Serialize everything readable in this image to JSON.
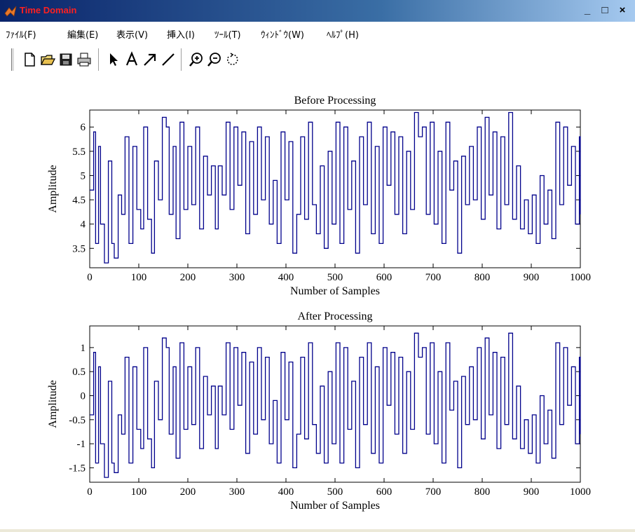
{
  "window": {
    "title": "Time Domain",
    "controls": {
      "minimize": "_",
      "maximize": "□",
      "close": "×"
    }
  },
  "menu": {
    "items": [
      "ﾌｧｲﾙ(F)",
      "編集(E)",
      "表示(V)",
      "挿入(I)",
      "ﾂｰﾙ(T)",
      "ｳｨﾝﾄﾞｳ(W)",
      "ﾍﾙﾌﾟ(H)"
    ]
  },
  "toolbar": {
    "buttons": [
      "new-file-icon",
      "open-file-icon",
      "save-icon",
      "print-icon",
      "select-arrow-icon",
      "insert-text-icon",
      "insert-arrow-icon",
      "insert-line-icon",
      "zoom-in-icon",
      "zoom-out-icon",
      "rotate-icon"
    ]
  },
  "colors": {
    "line": "#00008b",
    "title_text": "#ff2020"
  },
  "chart_data": [
    {
      "type": "line",
      "title": "Before Processing",
      "xlabel": "Number of Samples",
      "ylabel": "Amplitude",
      "xlim": [
        0,
        1000
      ],
      "ylim": [
        3.1,
        6.35
      ],
      "xticks": [
        0,
        100,
        200,
        300,
        400,
        500,
        600,
        700,
        800,
        900,
        1000
      ],
      "yticks": [
        3.5,
        4,
        4.5,
        5,
        5.5,
        6
      ],
      "ytick_labels": [
        "3.5",
        "4",
        "4.5",
        "5",
        "5.5",
        "6"
      ],
      "grid": false,
      "series": [
        {
          "x": [
            0,
            8,
            12,
            18,
            22,
            30,
            38,
            45,
            50,
            58,
            65,
            72,
            80,
            88,
            96,
            104,
            110,
            118,
            126,
            132,
            140,
            148,
            156,
            162,
            170,
            176,
            184,
            192,
            200,
            208,
            216,
            224,
            232,
            240,
            248,
            256,
            262,
            270,
            278,
            286,
            294,
            302,
            310,
            318,
            326,
            334,
            342,
            350,
            358,
            366,
            374,
            382,
            390,
            398,
            406,
            414,
            422,
            430,
            438,
            446,
            454,
            462,
            470,
            478,
            486,
            494,
            502,
            510,
            518,
            526,
            534,
            542,
            550,
            558,
            566,
            574,
            582,
            590,
            598,
            606,
            614,
            622,
            630,
            638,
            646,
            654,
            662,
            670,
            678,
            686,
            694,
            702,
            710,
            718,
            726,
            734,
            742,
            750,
            758,
            766,
            774,
            782,
            790,
            798,
            806,
            814,
            822,
            830,
            838,
            846,
            854,
            862,
            870,
            878,
            886,
            894,
            902,
            910,
            918,
            926,
            934,
            942,
            950,
            958,
            966,
            974,
            982,
            990,
            998,
            1000
          ],
          "y": [
            4.7,
            5.9,
            3.6,
            5.6,
            4.0,
            3.2,
            5.3,
            3.6,
            3.3,
            4.6,
            4.2,
            5.8,
            3.6,
            5.6,
            4.3,
            3.9,
            6.0,
            4.1,
            3.4,
            5.3,
            4.5,
            6.2,
            6.0,
            4.2,
            5.6,
            3.7,
            6.1,
            4.3,
            5.6,
            4.4,
            6.0,
            3.9,
            5.4,
            4.6,
            5.2,
            3.9,
            5.2,
            4.6,
            6.1,
            4.3,
            6.0,
            4.8,
            5.9,
            3.8,
            5.7,
            4.2,
            6.0,
            4.5,
            5.8,
            4.0,
            4.9,
            3.6,
            5.9,
            4.5,
            5.7,
            3.4,
            4.2,
            5.8,
            4.1,
            6.1,
            4.4,
            3.8,
            5.2,
            3.5,
            5.5,
            4.0,
            6.1,
            3.6,
            6.0,
            4.3,
            5.3,
            3.4,
            5.8,
            4.4,
            6.1,
            3.8,
            5.6,
            3.6,
            6.0,
            4.8,
            5.9,
            4.2,
            5.8,
            3.8,
            5.5,
            4.3,
            6.3,
            5.8,
            6.0,
            4.2,
            6.1,
            4.0,
            5.5,
            3.6,
            6.1,
            4.7,
            5.3,
            3.4,
            5.4,
            4.4,
            5.6,
            4.5,
            6.0,
            4.1,
            6.2,
            4.6,
            5.9,
            3.9,
            5.8,
            4.4,
            6.3,
            4.1,
            5.2,
            3.9,
            4.5,
            3.8,
            4.6,
            3.6,
            5.0,
            4.0,
            4.7,
            3.7,
            6.1,
            4.4,
            6.0,
            4.8,
            5.6,
            4.0,
            5.8,
            4.2
          ]
        }
      ]
    },
    {
      "type": "line",
      "title": "After Processing",
      "xlabel": "Number of Samples",
      "ylabel": "Amplitude",
      "xlim": [
        0,
        1000
      ],
      "ylim": [
        -1.8,
        1.45
      ],
      "xticks": [
        0,
        100,
        200,
        300,
        400,
        500,
        600,
        700,
        800,
        900,
        1000
      ],
      "yticks": [
        -1.5,
        -1,
        -0.5,
        0,
        0.5,
        1
      ],
      "ytick_labels": [
        "-1.5",
        "-1",
        "-0.5",
        "0",
        "0.5",
        "1"
      ],
      "grid": false,
      "series": [
        {
          "x": [
            0,
            8,
            12,
            18,
            22,
            30,
            38,
            45,
            50,
            58,
            65,
            72,
            80,
            88,
            96,
            104,
            110,
            118,
            126,
            132,
            140,
            148,
            156,
            162,
            170,
            176,
            184,
            192,
            200,
            208,
            216,
            224,
            232,
            240,
            248,
            256,
            262,
            270,
            278,
            286,
            294,
            302,
            310,
            318,
            326,
            334,
            342,
            350,
            358,
            366,
            374,
            382,
            390,
            398,
            406,
            414,
            422,
            430,
            438,
            446,
            454,
            462,
            470,
            478,
            486,
            494,
            502,
            510,
            518,
            526,
            534,
            542,
            550,
            558,
            566,
            574,
            582,
            590,
            598,
            606,
            614,
            622,
            630,
            638,
            646,
            654,
            662,
            670,
            678,
            686,
            694,
            702,
            710,
            718,
            726,
            734,
            742,
            750,
            758,
            766,
            774,
            782,
            790,
            798,
            806,
            814,
            822,
            830,
            838,
            846,
            854,
            862,
            870,
            878,
            886,
            894,
            902,
            910,
            918,
            926,
            934,
            942,
            950,
            958,
            966,
            974,
            982,
            990,
            998,
            1000
          ],
          "y": [
            -0.4,
            0.9,
            -1.4,
            0.6,
            -1.0,
            -1.7,
            0.3,
            -1.4,
            -1.6,
            -0.4,
            -0.8,
            0.8,
            -1.4,
            0.6,
            -0.7,
            -1.1,
            1.0,
            -0.9,
            -1.5,
            0.3,
            -0.5,
            1.2,
            1.0,
            -0.8,
            0.6,
            -1.3,
            1.1,
            -0.7,
            0.6,
            -0.6,
            1.0,
            -1.1,
            0.4,
            -0.4,
            0.2,
            -1.1,
            0.2,
            -0.4,
            1.1,
            -0.7,
            1.0,
            -0.2,
            0.9,
            -1.2,
            0.7,
            -0.8,
            1.0,
            -0.5,
            0.8,
            -1.0,
            -0.1,
            -1.4,
            0.9,
            -0.5,
            0.7,
            -1.5,
            -0.8,
            0.8,
            -0.9,
            1.1,
            -0.6,
            -1.2,
            0.2,
            -1.4,
            0.5,
            -1.0,
            1.1,
            -1.4,
            1.0,
            -0.7,
            0.3,
            -1.5,
            0.8,
            -0.6,
            1.1,
            -1.2,
            0.6,
            -1.4,
            1.0,
            -0.2,
            0.9,
            -0.8,
            0.8,
            -1.2,
            0.5,
            -0.7,
            1.3,
            0.8,
            1.0,
            -0.8,
            1.1,
            -1.0,
            0.5,
            -1.4,
            1.1,
            -0.3,
            0.3,
            -1.5,
            0.4,
            -0.6,
            0.6,
            -0.5,
            1.0,
            -0.9,
            1.2,
            -0.4,
            0.9,
            -1.1,
            0.8,
            -0.6,
            1.3,
            -0.9,
            0.2,
            -1.1,
            -0.5,
            -1.2,
            -0.4,
            -1.4,
            0.0,
            -1.0,
            -0.3,
            -1.3,
            1.1,
            -0.6,
            1.0,
            -0.2,
            0.6,
            -1.0,
            0.8,
            -0.8
          ]
        }
      ]
    }
  ]
}
